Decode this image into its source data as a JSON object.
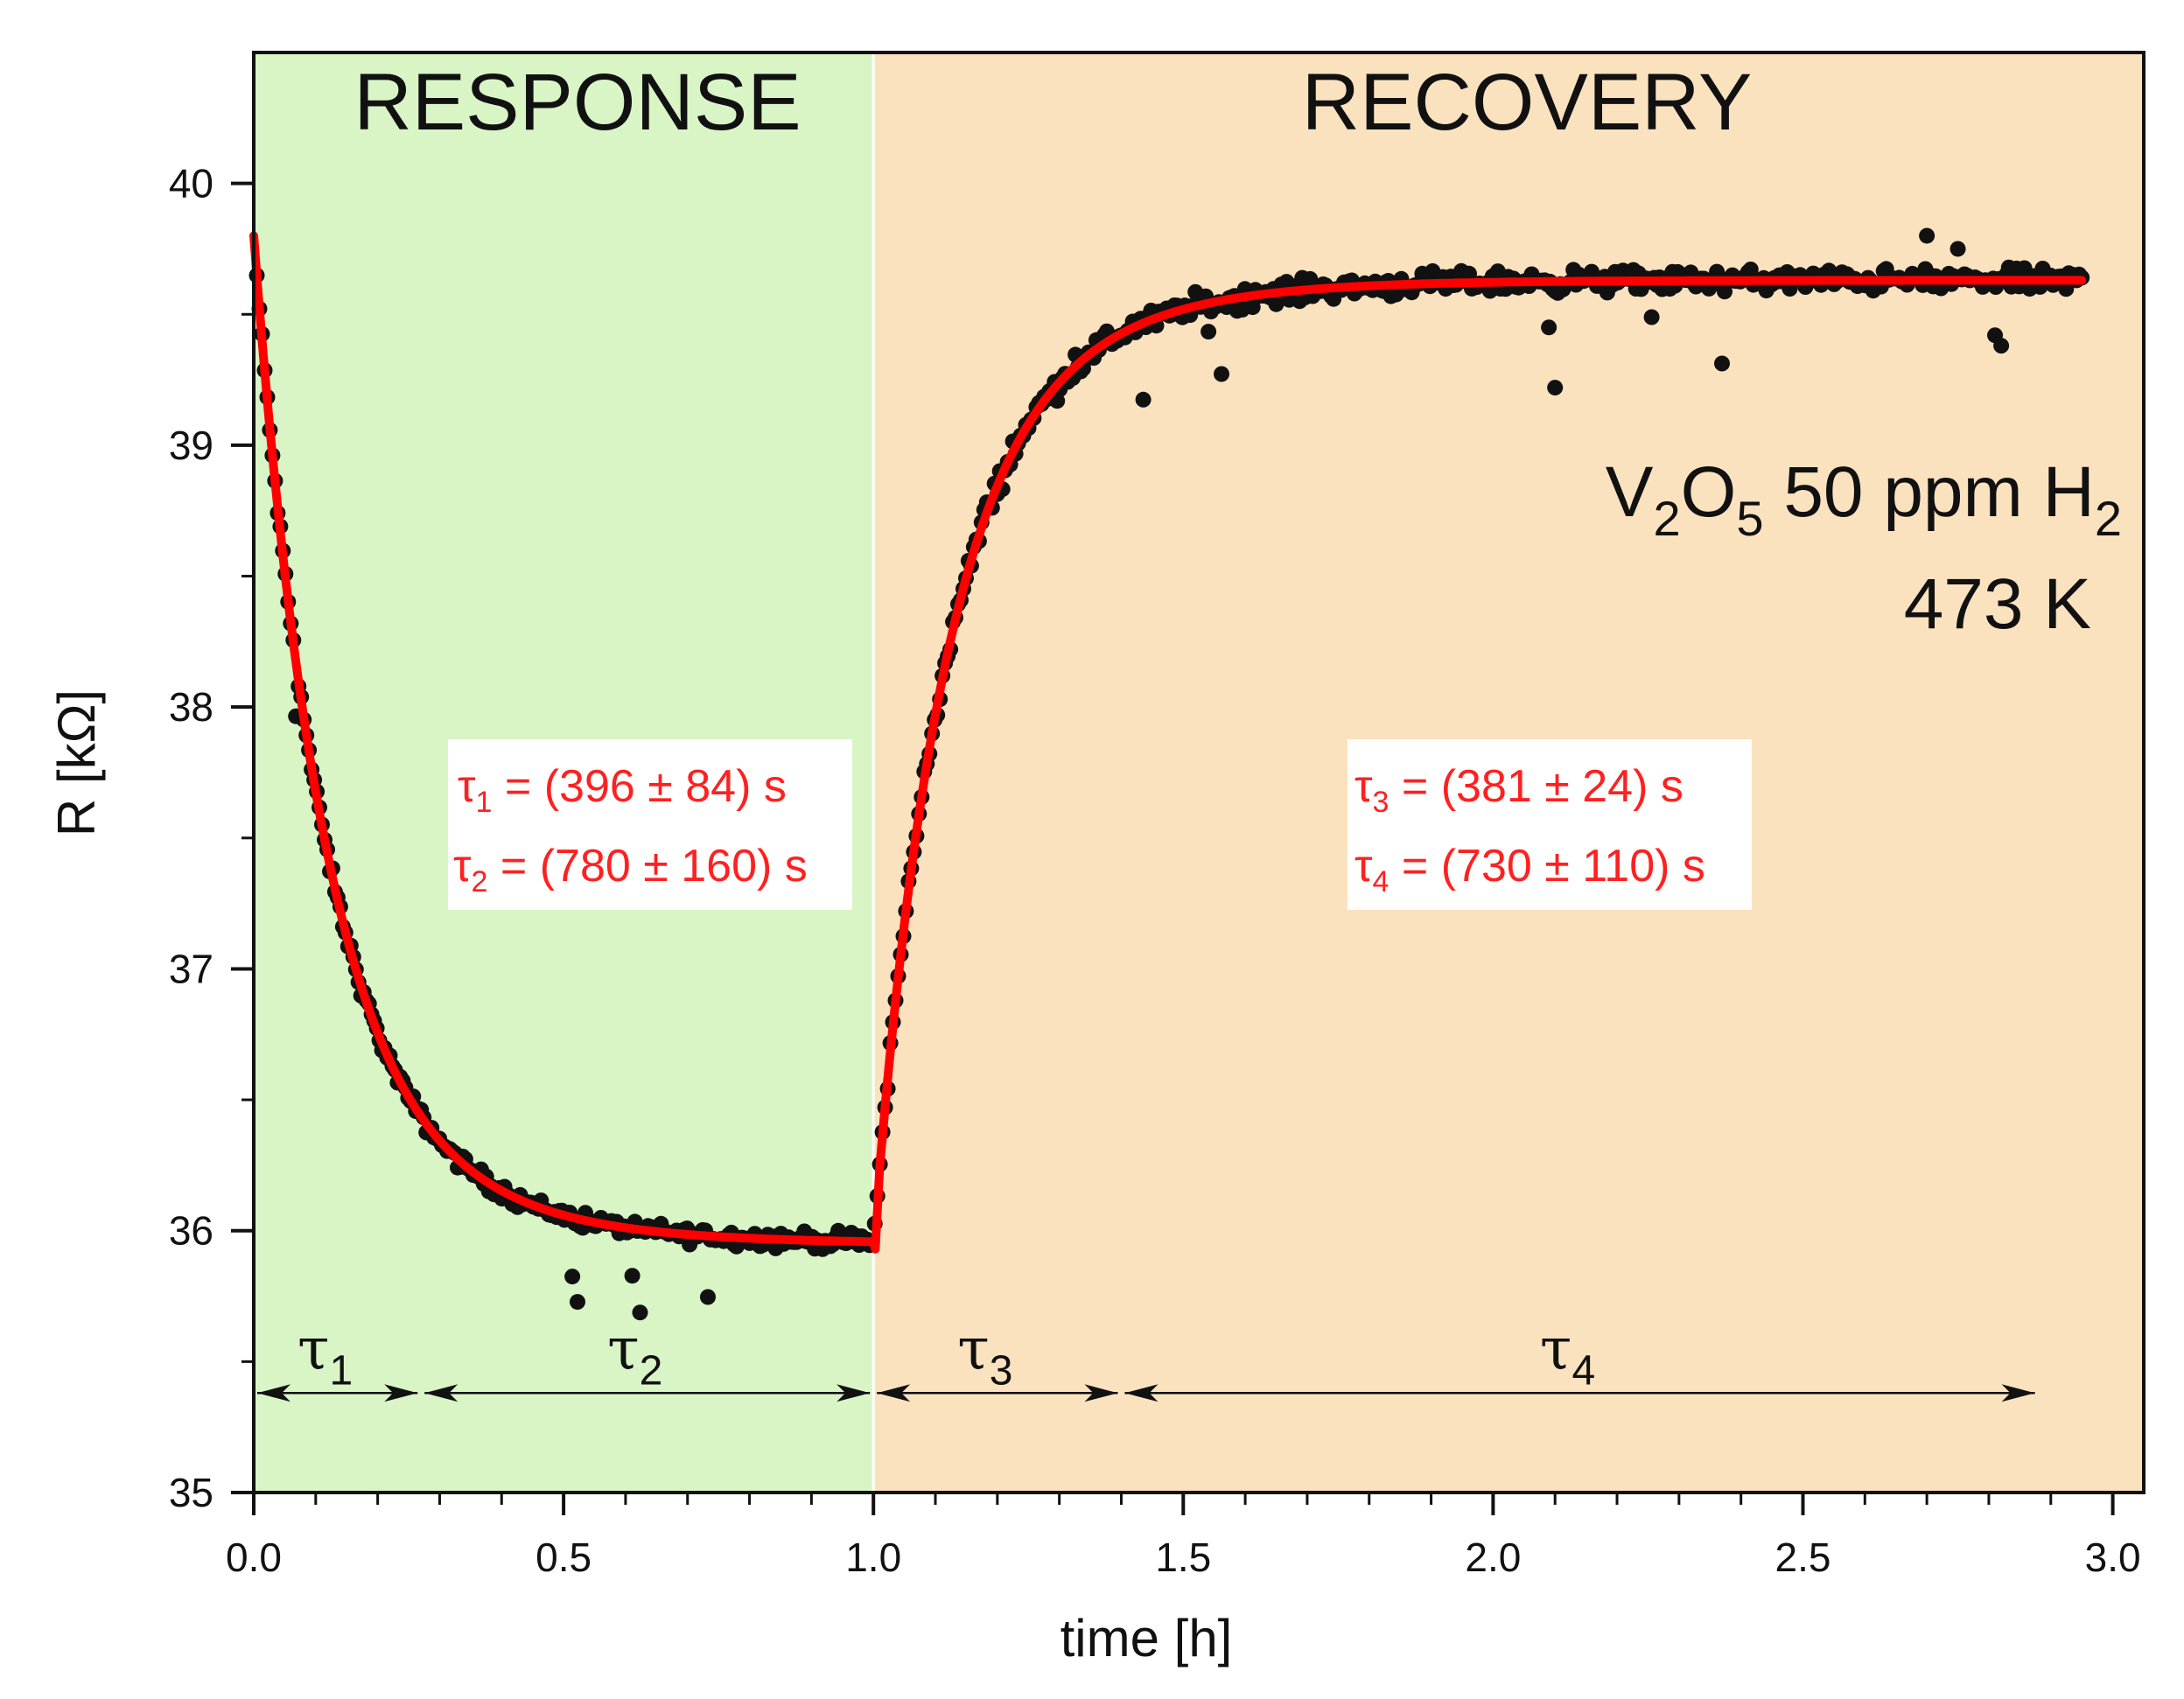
{
  "chart_data": {
    "type": "scatter",
    "xlabel": "time [h]",
    "ylabel": "R [kΩ]",
    "xlim": [
      0.0,
      3.05
    ],
    "ylim": [
      35,
      40.5
    ],
    "xticks": [
      "0.0",
      "0.5",
      "1.0",
      "1.5",
      "2.0",
      "2.5",
      "3.0"
    ],
    "yticks": [
      "35",
      "36",
      "37",
      "38",
      "39",
      "40"
    ],
    "regions": [
      {
        "label": "RESPONSE",
        "x_from": 0.0,
        "x_to": 1.0,
        "color": "#d9f5c6"
      },
      {
        "label": "RECOVERY",
        "x_from": 1.0,
        "x_to": 3.05,
        "color": "#fbe2bf"
      }
    ],
    "annotation": {
      "line1": {
        "base1": "V",
        "sub1": "2",
        "base2": "O",
        "sub2": "5",
        "base3": " 50 ppm H",
        "sub3": "2"
      },
      "line2": "473 K"
    },
    "response_fit": {
      "box": [
        {
          "tau": "τ",
          "sub": "1",
          "text": " = (396 ± 84) s"
        },
        {
          "tau": "τ",
          "sub": "2",
          "text": " = (780 ± 160) s"
        }
      ],
      "R_start": 39.8,
      "R_end": 35.95,
      "tau1_s": 396,
      "tau2_s": 780
    },
    "recovery_fit": {
      "box": [
        {
          "tau": "τ",
          "sub": "3",
          "text": " = (381 ± 24) s"
        },
        {
          "tau": "τ",
          "sub": "4",
          "text": " = (730 ± 110) s"
        }
      ],
      "R_start": 35.95,
      "R_end": 39.63,
      "tau3_s": 381,
      "tau4_s": 730
    },
    "interval_arrows": [
      {
        "tau": "τ",
        "sub": "1",
        "x_from": 0.0,
        "x_to": 0.27
      },
      {
        "tau": "τ",
        "sub": "2",
        "x_from": 0.27,
        "x_to": 1.0
      },
      {
        "tau": "τ",
        "sub": "3",
        "x_from": 1.0,
        "x_to": 1.4
      },
      {
        "tau": "τ",
        "sub": "4",
        "x_from": 1.4,
        "x_to": 2.88
      }
    ],
    "arrow_level_R": 35.38,
    "series": [
      {
        "name": "measured",
        "style": "black markers",
        "color": "#111111",
        "t_end": 2.95
      },
      {
        "name": "fit",
        "style": "red line",
        "color": "#ff0000"
      }
    ]
  }
}
